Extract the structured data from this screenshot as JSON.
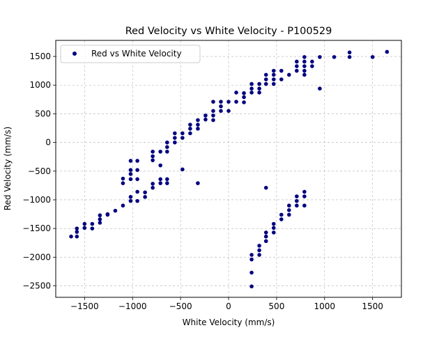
{
  "chart_data": {
    "type": "scatter",
    "title": "Red Velocity vs White Velocity - P100529",
    "xlabel": "White Velocity (mm/s)",
    "ylabel": "Red Velocity (mm/s)",
    "xlim": [
      -1800,
      1800
    ],
    "ylim": [
      -2700,
      1780
    ],
    "xticks": [
      -1500,
      -1000,
      -500,
      0,
      500,
      1000,
      1500
    ],
    "yticks": [
      -2500,
      -2000,
      -1500,
      -1000,
      -500,
      0,
      500,
      1000,
      1500
    ],
    "xtick_labels": [
      "−1500",
      "−1000",
      "−500",
      "0",
      "500",
      "1000",
      "1500"
    ],
    "ytick_labels": [
      "−2500",
      "−2000",
      "−1500",
      "−1000",
      "−500",
      "0",
      "500",
      "1000",
      "1500"
    ],
    "grid": true,
    "legend_position": "top-left",
    "series": [
      {
        "name": "Red vs White Velocity",
        "color": "#00007f",
        "points": [
          [
            -1640,
            -1640
          ],
          [
            -1580,
            -1640
          ],
          [
            -1580,
            -1560
          ],
          [
            -1580,
            -1500
          ],
          [
            -1500,
            -1490
          ],
          [
            -1500,
            -1420
          ],
          [
            -1420,
            -1500
          ],
          [
            -1420,
            -1420
          ],
          [
            -1340,
            -1400
          ],
          [
            -1340,
            -1340
          ],
          [
            -1340,
            -1270
          ],
          [
            -1260,
            -1250
          ],
          [
            -1260,
            -1260
          ],
          [
            -1180,
            -1190
          ],
          [
            -1100,
            -1100
          ],
          [
            -1100,
            -710
          ],
          [
            -1100,
            -630
          ],
          [
            -1020,
            -1020
          ],
          [
            -1020,
            -950
          ],
          [
            -1020,
            -640
          ],
          [
            -1020,
            -550
          ],
          [
            -1020,
            -480
          ],
          [
            -1020,
            -320
          ],
          [
            -950,
            -1020
          ],
          [
            -950,
            -860
          ],
          [
            -950,
            -640
          ],
          [
            -950,
            -480
          ],
          [
            -950,
            -320
          ],
          [
            -870,
            -950
          ],
          [
            -870,
            -870
          ],
          [
            -790,
            -790
          ],
          [
            -790,
            -720
          ],
          [
            -790,
            -310
          ],
          [
            -790,
            -240
          ],
          [
            -790,
            -160
          ],
          [
            -710,
            -710
          ],
          [
            -710,
            -640
          ],
          [
            -710,
            -400
          ],
          [
            -710,
            -160
          ],
          [
            -640,
            -710
          ],
          [
            -640,
            -640
          ],
          [
            -640,
            -160
          ],
          [
            -640,
            -80
          ],
          [
            -640,
            0
          ],
          [
            -560,
            0
          ],
          [
            -560,
            80
          ],
          [
            -560,
            160
          ],
          [
            -480,
            80
          ],
          [
            -480,
            160
          ],
          [
            -480,
            -470
          ],
          [
            -400,
            160
          ],
          [
            -400,
            240
          ],
          [
            -400,
            310
          ],
          [
            -320,
            240
          ],
          [
            -320,
            310
          ],
          [
            -320,
            390
          ],
          [
            -320,
            -710
          ],
          [
            -240,
            400
          ],
          [
            -240,
            470
          ],
          [
            -160,
            390
          ],
          [
            -160,
            470
          ],
          [
            -160,
            550
          ],
          [
            -160,
            710
          ],
          [
            -80,
            550
          ],
          [
            -80,
            630
          ],
          [
            -80,
            710
          ],
          [
            0,
            550
          ],
          [
            0,
            710
          ],
          [
            80,
            710
          ],
          [
            80,
            870
          ],
          [
            160,
            700
          ],
          [
            160,
            790
          ],
          [
            160,
            860
          ],
          [
            240,
            870
          ],
          [
            240,
            940
          ],
          [
            240,
            1020
          ],
          [
            320,
            870
          ],
          [
            320,
            940
          ],
          [
            320,
            1020
          ],
          [
            390,
            1020
          ],
          [
            390,
            1100
          ],
          [
            390,
            1180
          ],
          [
            470,
            1020
          ],
          [
            470,
            1100
          ],
          [
            470,
            1180
          ],
          [
            470,
            1250
          ],
          [
            550,
            1100
          ],
          [
            550,
            1250
          ],
          [
            630,
            1180
          ],
          [
            710,
            1250
          ],
          [
            710,
            1330
          ],
          [
            710,
            1410
          ],
          [
            790,
            1180
          ],
          [
            790,
            1250
          ],
          [
            790,
            1330
          ],
          [
            790,
            1410
          ],
          [
            790,
            1490
          ],
          [
            870,
            1330
          ],
          [
            870,
            1410
          ],
          [
            950,
            1490
          ],
          [
            950,
            940
          ],
          [
            1100,
            1490
          ],
          [
            1260,
            1490
          ],
          [
            1260,
            1570
          ],
          [
            1500,
            1490
          ],
          [
            1650,
            1580
          ],
          [
            240,
            -2510
          ],
          [
            240,
            -2270
          ],
          [
            240,
            -2040
          ],
          [
            240,
            -1960
          ],
          [
            320,
            -1960
          ],
          [
            320,
            -1880
          ],
          [
            320,
            -1800
          ],
          [
            390,
            -1720
          ],
          [
            390,
            -1640
          ],
          [
            390,
            -1570
          ],
          [
            390,
            -790
          ],
          [
            470,
            -1570
          ],
          [
            470,
            -1490
          ],
          [
            470,
            -1420
          ],
          [
            550,
            -1340
          ],
          [
            550,
            -1260
          ],
          [
            630,
            -1260
          ],
          [
            630,
            -1180
          ],
          [
            630,
            -1100
          ],
          [
            710,
            -1100
          ],
          [
            710,
            -1020
          ],
          [
            710,
            -940
          ],
          [
            790,
            -1100
          ],
          [
            790,
            -940
          ],
          [
            790,
            -860
          ]
        ]
      }
    ]
  }
}
